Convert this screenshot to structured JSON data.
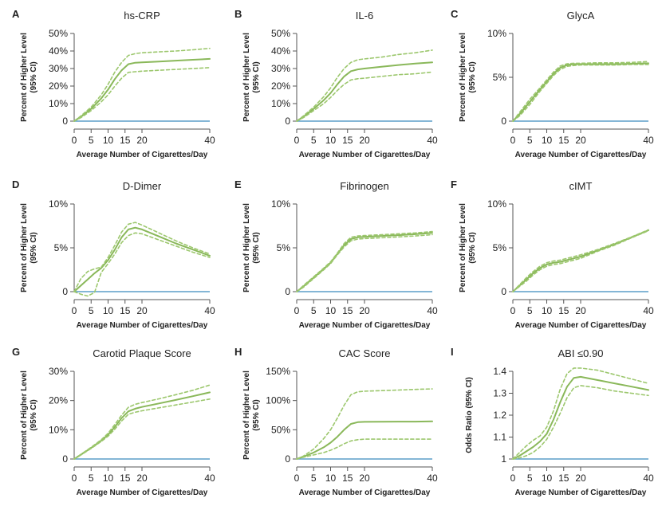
{
  "colors": {
    "line": "#8ab85a",
    "ci": "#9cc76d",
    "baseline": "#5b9ec9",
    "axis": "#555555"
  },
  "chart_data": [
    {
      "type": "line",
      "letter": "A",
      "title": "hs-CRP",
      "xlabel": "Average Number of Cigarettes/Day",
      "ylabel": "Percent of Higher Level (95% CI)",
      "xlim": [
        0,
        40
      ],
      "ylim": [
        0,
        50
      ],
      "xticks": [
        0,
        5,
        10,
        15,
        20,
        40
      ],
      "xtick_labels": [
        "0",
        "5",
        "10",
        "15",
        "20",
        "40"
      ],
      "yticks": [
        0,
        10,
        20,
        30,
        40,
        50
      ],
      "ytick_labels": [
        "0",
        "10%",
        "20%",
        "30%",
        "40%",
        "50%"
      ],
      "baseline": 0,
      "x": [
        0,
        2,
        5,
        8,
        10,
        12,
        14,
        16,
        18,
        20,
        25,
        30,
        35,
        40
      ],
      "series": [
        {
          "role": "estimate",
          "values": [
            0,
            2.5,
            7,
            13,
            18,
            24,
            29,
            32.5,
            33.3,
            33.5,
            34,
            34.5,
            35,
            35.5
          ]
        },
        {
          "role": "upper",
          "values": [
            0,
            3,
            8,
            15,
            21,
            28,
            33.5,
            37.5,
            38.5,
            39,
            39.5,
            40,
            40.7,
            41.5
          ]
        },
        {
          "role": "lower",
          "values": [
            0,
            2,
            6,
            11,
            15,
            20,
            24.5,
            27.8,
            28.2,
            28.5,
            29,
            29.5,
            30,
            30.5
          ]
        }
      ]
    },
    {
      "type": "line",
      "letter": "B",
      "title": "IL-6",
      "xlabel": "Average Number of Cigarettes/Day",
      "ylabel": "Percent of Higher Level (95% CI)",
      "xlim": [
        0,
        40
      ],
      "ylim": [
        0,
        50
      ],
      "xticks": [
        0,
        5,
        10,
        15,
        20,
        40
      ],
      "xtick_labels": [
        "0",
        "5",
        "10",
        "15",
        "20",
        "40"
      ],
      "yticks": [
        0,
        10,
        20,
        30,
        40,
        50
      ],
      "ytick_labels": [
        "0",
        "10%",
        "20%",
        "30%",
        "40%",
        "50%"
      ],
      "baseline": 0,
      "x": [
        0,
        2,
        5,
        8,
        10,
        12,
        14,
        16,
        18,
        20,
        25,
        30,
        35,
        40
      ],
      "series": [
        {
          "role": "estimate",
          "values": [
            0,
            2.5,
            7,
            12,
            16,
            21,
            25.5,
            28.5,
            29.5,
            30,
            31,
            32,
            32.8,
            33.5
          ]
        },
        {
          "role": "upper",
          "values": [
            0,
            3,
            8,
            14,
            19,
            25,
            30,
            33.5,
            35,
            35.5,
            36.5,
            38,
            39,
            40.5
          ]
        },
        {
          "role": "lower",
          "values": [
            0,
            2,
            6,
            10,
            13.5,
            17.5,
            21,
            23.5,
            24.2,
            24.5,
            25.5,
            26.5,
            27,
            28
          ]
        }
      ]
    },
    {
      "type": "line",
      "letter": "C",
      "title": "GlycA",
      "xlabel": "Average Number of Cigarettes/Day",
      "ylabel": "Percent of Higher Level (95% CI)",
      "xlim": [
        0,
        40
      ],
      "ylim": [
        0,
        10
      ],
      "xticks": [
        0,
        5,
        10,
        15,
        20,
        40
      ],
      "xtick_labels": [
        "0",
        "5",
        "10",
        "15",
        "20",
        "40"
      ],
      "yticks": [
        0,
        5,
        10
      ],
      "ytick_labels": [
        "0",
        "5%",
        "10%"
      ],
      "baseline": 0,
      "x": [
        0,
        2,
        5,
        8,
        10,
        12,
        14,
        16,
        18,
        20,
        25,
        30,
        35,
        40
      ],
      "series": [
        {
          "role": "estimate",
          "values": [
            0,
            0.8,
            2.2,
            3.6,
            4.5,
            5.4,
            6.1,
            6.4,
            6.5,
            6.5,
            6.5,
            6.5,
            6.55,
            6.6
          ]
        },
        {
          "role": "upper",
          "values": [
            0,
            1,
            2.5,
            3.8,
            4.7,
            5.6,
            6.3,
            6.55,
            6.6,
            6.6,
            6.65,
            6.65,
            6.7,
            6.8
          ]
        },
        {
          "role": "lower",
          "values": [
            0,
            0.6,
            1.9,
            3.4,
            4.3,
            5.2,
            5.9,
            6.25,
            6.35,
            6.4,
            6.4,
            6.4,
            6.45,
            6.45
          ]
        }
      ]
    },
    {
      "type": "line",
      "letter": "D",
      "title": "D-Dimer",
      "xlabel": "Average Number of Cigarettes/Day",
      "ylabel": "Percent of Higher Level (95% CI)",
      "xlim": [
        0,
        40
      ],
      "ylim": [
        0,
        10
      ],
      "xticks": [
        0,
        5,
        10,
        15,
        20,
        40
      ],
      "xtick_labels": [
        "0",
        "5",
        "10",
        "15",
        "20",
        "40"
      ],
      "yticks": [
        0,
        5,
        10
      ],
      "ytick_labels": [
        "0",
        "5%",
        "10%"
      ],
      "baseline": 0,
      "x": [
        0,
        2,
        4,
        6,
        8,
        10,
        12,
        14,
        16,
        18,
        20,
        25,
        30,
        35,
        40
      ],
      "series": [
        {
          "role": "estimate",
          "values": [
            0,
            0.7,
            1.4,
            2.1,
            2.7,
            3.6,
            4.8,
            6.2,
            7.1,
            7.3,
            7.1,
            6.3,
            5.5,
            4.8,
            4.1
          ]
        },
        {
          "role": "upper",
          "values": [
            0,
            1.5,
            2.3,
            2.6,
            2.8,
            3.9,
            5.3,
            6.8,
            7.7,
            7.9,
            7.6,
            6.7,
            5.8,
            5,
            4.3
          ]
        },
        {
          "role": "lower",
          "values": [
            0,
            -0.3,
            -0.5,
            -0.1,
            2.2,
            3.2,
            4.3,
            5.6,
            6.4,
            6.7,
            6.6,
            5.9,
            5.2,
            4.5,
            3.9
          ]
        }
      ]
    },
    {
      "type": "line",
      "letter": "E",
      "title": "Fibrinogen",
      "xlabel": "Average Number of Cigarettes/Day",
      "ylabel": "Percent of Higher Level (95% CI)",
      "xlim": [
        0,
        40
      ],
      "ylim": [
        0,
        10
      ],
      "xticks": [
        0,
        5,
        10,
        15,
        20,
        40
      ],
      "xtick_labels": [
        "0",
        "5",
        "10",
        "15",
        "20",
        "40"
      ],
      "yticks": [
        0,
        5,
        10
      ],
      "ytick_labels": [
        "0",
        "5%",
        "10%"
      ],
      "baseline": 0,
      "x": [
        0,
        2,
        5,
        8,
        10,
        12,
        14,
        16,
        18,
        20,
        25,
        30,
        35,
        40
      ],
      "series": [
        {
          "role": "estimate",
          "values": [
            0,
            0.6,
            1.6,
            2.6,
            3.3,
            4.3,
            5.3,
            6,
            6.2,
            6.25,
            6.35,
            6.45,
            6.55,
            6.7
          ]
        },
        {
          "role": "upper",
          "values": [
            0,
            0.7,
            1.7,
            2.7,
            3.4,
            4.4,
            5.5,
            6.2,
            6.35,
            6.4,
            6.5,
            6.6,
            6.7,
            6.85
          ]
        },
        {
          "role": "lower",
          "values": [
            0,
            0.5,
            1.5,
            2.5,
            3.2,
            4.2,
            5.1,
            5.8,
            6,
            6.05,
            6.15,
            6.25,
            6.35,
            6.5
          ]
        }
      ]
    },
    {
      "type": "line",
      "letter": "F",
      "title": "cIMT",
      "xlabel": "Average Number of Cigarettes/Day",
      "ylabel": "Percent of Higher Level (95% CI)",
      "xlim": [
        0,
        40
      ],
      "ylim": [
        0,
        10
      ],
      "xticks": [
        0,
        5,
        10,
        15,
        20,
        40
      ],
      "xtick_labels": [
        "0",
        "5",
        "10",
        "15",
        "20",
        "40"
      ],
      "yticks": [
        0,
        5,
        10
      ],
      "ytick_labels": [
        "0",
        "5%",
        "10%"
      ],
      "baseline": 0,
      "x": [
        0,
        2,
        4,
        6,
        8,
        10,
        12,
        14,
        16,
        18,
        20,
        25,
        30,
        35,
        40
      ],
      "series": [
        {
          "role": "estimate",
          "values": [
            0,
            0.7,
            1.4,
            2.1,
            2.7,
            3.1,
            3.3,
            3.4,
            3.6,
            3.8,
            4,
            4.7,
            5.4,
            6.2,
            7
          ]
        },
        {
          "role": "upper",
          "values": [
            0,
            0.8,
            1.6,
            2.3,
            2.9,
            3.3,
            3.5,
            3.6,
            3.8,
            4,
            4.2,
            4.8,
            5.5,
            6.25,
            7.05
          ]
        },
        {
          "role": "lower",
          "values": [
            0,
            0.6,
            1.2,
            1.9,
            2.5,
            2.9,
            3.1,
            3.2,
            3.4,
            3.6,
            3.8,
            4.6,
            5.3,
            6.15,
            6.95
          ]
        }
      ]
    },
    {
      "type": "line",
      "letter": "G",
      "title": "Carotid Plaque Score",
      "xlabel": "Average Number of Cigarettes/Day",
      "ylabel": "Percent of Higher Level (95% CI)",
      "xlim": [
        0,
        40
      ],
      "ylim": [
        0,
        30
      ],
      "xticks": [
        0,
        5,
        10,
        15,
        20,
        40
      ],
      "xtick_labels": [
        "0",
        "5",
        "10",
        "15",
        "20",
        "40"
      ],
      "yticks": [
        0,
        10,
        20,
        30
      ],
      "ytick_labels": [
        "0",
        "10%",
        "20%",
        "30%"
      ],
      "baseline": 0,
      "x": [
        0,
        2,
        5,
        8,
        10,
        12,
        14,
        16,
        18,
        20,
        25,
        30,
        35,
        40
      ],
      "series": [
        {
          "role": "estimate",
          "values": [
            0,
            1.5,
            3.8,
            6.3,
            8.3,
            11,
            14,
            16.3,
            17.2,
            17.8,
            19,
            20.2,
            21.5,
            22.8
          ]
        },
        {
          "role": "upper",
          "values": [
            0,
            1.6,
            4,
            6.6,
            8.8,
            11.8,
            15,
            17.7,
            18.7,
            19.3,
            20.6,
            22,
            23.5,
            25.3
          ]
        },
        {
          "role": "lower",
          "values": [
            0,
            1.4,
            3.6,
            6,
            7.8,
            10.2,
            13,
            15.3,
            16,
            16.5,
            17.5,
            18.5,
            19.5,
            20.5
          ]
        }
      ]
    },
    {
      "type": "line",
      "letter": "H",
      "title": "CAC Score",
      "xlabel": "Average Number of Cigarettes/Day",
      "ylabel": "Percent of Higher Level (95% CI)",
      "xlim": [
        0,
        40
      ],
      "ylim": [
        0,
        150
      ],
      "xticks": [
        0,
        5,
        10,
        15,
        20,
        40
      ],
      "xtick_labels": [
        "0",
        "5",
        "10",
        "15",
        "20",
        "40"
      ],
      "yticks": [
        0,
        50,
        100,
        150
      ],
      "ytick_labels": [
        "0",
        "50%",
        "100%",
        "150%"
      ],
      "baseline": 0,
      "x": [
        0,
        2,
        5,
        8,
        10,
        12,
        14,
        16,
        18,
        20,
        25,
        30,
        35,
        40
      ],
      "series": [
        {
          "role": "estimate",
          "values": [
            0,
            4,
            11,
            20,
            28,
            38,
            50,
            60,
            63,
            63.5,
            63.8,
            64,
            64,
            64.5
          ]
        },
        {
          "role": "upper",
          "values": [
            0,
            5,
            17,
            35,
            50,
            70,
            92,
            110,
            115,
            116,
            117,
            118,
            119,
            120
          ]
        },
        {
          "role": "lower",
          "values": [
            0,
            3,
            7,
            11,
            15,
            20,
            26,
            31,
            33,
            34,
            34,
            34,
            34,
            34
          ]
        }
      ]
    },
    {
      "type": "line",
      "letter": "I",
      "title": "ABI ≤0.90",
      "xlabel": "Average Number of Cigarettes/Day",
      "ylabel": "Odds Ratio (95% CI)",
      "xlim": [
        0,
        40
      ],
      "ylim": [
        1,
        1.4
      ],
      "xticks": [
        0,
        5,
        10,
        15,
        20,
        40
      ],
      "xtick_labels": [
        "0",
        "5",
        "10",
        "15",
        "20",
        "40"
      ],
      "yticks": [
        1,
        1.1,
        1.2,
        1.3,
        1.4
      ],
      "ytick_labels": [
        "1",
        "1.1",
        "1.2",
        "1.3",
        "1.4"
      ],
      "baseline": 1,
      "x": [
        0,
        2,
        4,
        6,
        8,
        10,
        12,
        14,
        16,
        18,
        20,
        25,
        30,
        35,
        40
      ],
      "series": [
        {
          "role": "estimate",
          "values": [
            1,
            1.015,
            1.035,
            1.055,
            1.08,
            1.115,
            1.18,
            1.26,
            1.33,
            1.37,
            1.375,
            1.36,
            1.345,
            1.33,
            1.315
          ]
        },
        {
          "role": "upper",
          "values": [
            1,
            1.03,
            1.06,
            1.085,
            1.105,
            1.145,
            1.22,
            1.32,
            1.39,
            1.415,
            1.415,
            1.405,
            1.385,
            1.365,
            1.345
          ]
        },
        {
          "role": "lower",
          "values": [
            1,
            1.005,
            1.015,
            1.03,
            1.055,
            1.09,
            1.145,
            1.21,
            1.28,
            1.325,
            1.335,
            1.325,
            1.31,
            1.3,
            1.29
          ]
        }
      ]
    }
  ]
}
